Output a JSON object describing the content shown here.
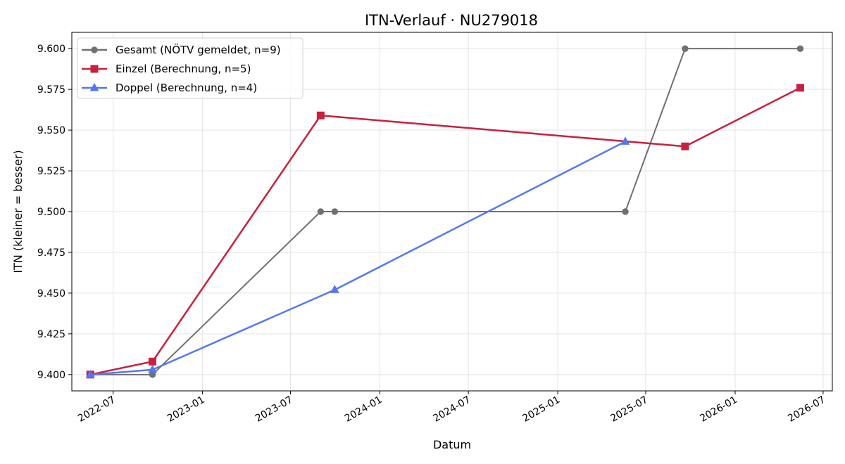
{
  "chart_data": {
    "type": "line",
    "title": "ITN-Verlauf · NU279018",
    "xlabel": "Datum",
    "ylabel": "ITN  (kleiner = besser)",
    "x_type": "date",
    "xlim": [
      "2022-04-07",
      "2026-07-20"
    ],
    "ylim": [
      9.39,
      9.61
    ],
    "x_ticks": [
      "2022-07-01",
      "2023-01-01",
      "2023-07-01",
      "2024-01-01",
      "2024-07-01",
      "2025-01-01",
      "2025-07-01",
      "2026-01-01",
      "2026-07-01"
    ],
    "x_tick_labels": [
      "2022-07",
      "2023-01",
      "2023-07",
      "2024-01",
      "2024-07",
      "2025-01",
      "2025-07",
      "2026-01",
      "2026-07"
    ],
    "y_ticks": [
      9.4,
      9.425,
      9.45,
      9.475,
      9.5,
      9.525,
      9.55,
      9.575,
      9.6
    ],
    "y_tick_labels": [
      "9.400",
      "9.425",
      "9.450",
      "9.475",
      "9.500",
      "9.525",
      "9.550",
      "9.575",
      "9.600"
    ],
    "grid": true,
    "legend_position": "top-left",
    "series": [
      {
        "name": "Gesamt (NÖTV gemeldet, n=9)",
        "color": "#707070",
        "marker": "circle",
        "points": [
          {
            "x": "2022-05-15",
            "y": 9.4
          },
          {
            "x": "2022-09-20",
            "y": 9.4
          },
          {
            "x": "2023-09-01",
            "y": 9.5
          },
          {
            "x": "2023-09-30",
            "y": 9.5
          },
          {
            "x": "2025-05-20",
            "y": 9.5
          },
          {
            "x": "2025-09-20",
            "y": 9.6
          },
          {
            "x": "2026-05-15",
            "y": 9.6
          }
        ]
      },
      {
        "name": "Einzel (Berechnung, n=5)",
        "color": "#c8203e",
        "marker": "square",
        "points": [
          {
            "x": "2022-05-15",
            "y": 9.4
          },
          {
            "x": "2022-09-20",
            "y": 9.408
          },
          {
            "x": "2023-09-01",
            "y": 9.559
          },
          {
            "x": "2025-09-20",
            "y": 9.54
          },
          {
            "x": "2026-05-15",
            "y": 9.576
          }
        ]
      },
      {
        "name": "Doppel (Berechnung, n=4)",
        "color": "#5577ee",
        "marker": "triangle",
        "points": [
          {
            "x": "2022-05-15",
            "y": 9.4
          },
          {
            "x": "2022-09-20",
            "y": 9.403
          },
          {
            "x": "2023-09-30",
            "y": 9.452
          },
          {
            "x": "2025-05-20",
            "y": 9.543
          }
        ]
      }
    ]
  }
}
